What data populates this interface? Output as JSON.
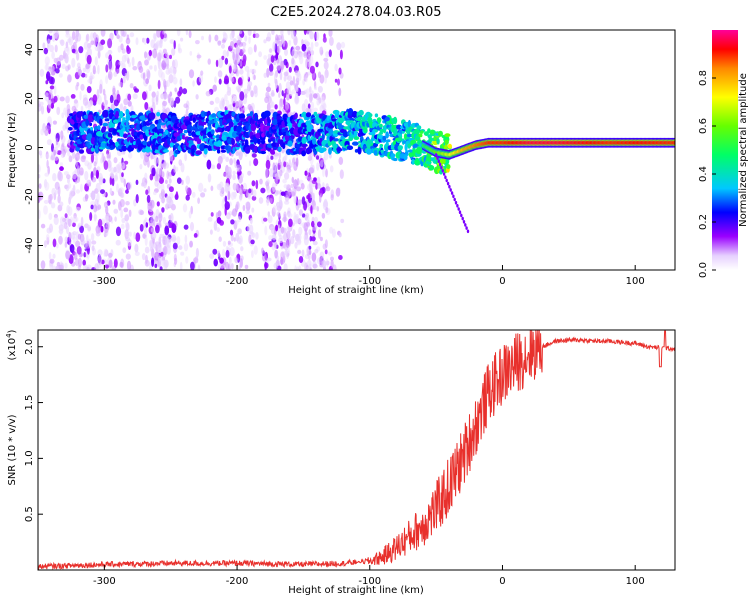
{
  "title": "C2E5.2024.278.04.03.R05",
  "colors": {
    "spectrogram_low": "#8800ee",
    "snr_line": "#e8302c",
    "background": "#ffffff",
    "axis": "#000000"
  },
  "chart_data": [
    {
      "type": "heatmap",
      "xlabel": "Height of straight line (km)",
      "ylabel": "Frequency (Hz)",
      "xlim": [
        -350,
        130
      ],
      "ylim": [
        -50,
        48
      ],
      "x_ticks": [
        -300,
        -200,
        -100,
        0,
        100
      ],
      "y_ticks": [
        -40,
        -20,
        0,
        20,
        40
      ],
      "grid": false,
      "colorbar": {
        "label": "Normalized spectral amplitude",
        "range": [
          0.0,
          1.0
        ],
        "ticks": [
          "0.0",
          "0.2",
          "0.4",
          "0.6",
          "0.8"
        ],
        "tick_values": [
          0.0,
          0.2,
          0.4,
          0.6,
          0.8
        ]
      },
      "ridge": [
        {
          "x": -320,
          "y": 6
        },
        {
          "x": -300,
          "y": 7
        },
        {
          "x": -280,
          "y": 7
        },
        {
          "x": -260,
          "y": 6
        },
        {
          "x": -240,
          "y": 5
        },
        {
          "x": -220,
          "y": 6
        },
        {
          "x": -200,
          "y": 7
        },
        {
          "x": -180,
          "y": 6
        },
        {
          "x": -160,
          "y": 5
        },
        {
          "x": -140,
          "y": 6
        },
        {
          "x": -120,
          "y": 7
        },
        {
          "x": -100,
          "y": 6
        },
        {
          "x": -80,
          "y": 3
        },
        {
          "x": -60,
          "y": 1
        },
        {
          "x": -50,
          "y": -2
        },
        {
          "x": -40,
          "y": -3
        },
        {
          "x": -30,
          "y": -1
        },
        {
          "x": -20,
          "y": 1
        },
        {
          "x": -10,
          "y": 2
        },
        {
          "x": 0,
          "y": 2
        },
        {
          "x": 20,
          "y": 2
        },
        {
          "x": 40,
          "y": 2
        },
        {
          "x": 60,
          "y": 2
        },
        {
          "x": 80,
          "y": 2
        },
        {
          "x": 100,
          "y": 2
        },
        {
          "x": 130,
          "y": 2
        }
      ],
      "ridge_amplitude": [
        0.28,
        0.35,
        0.3,
        0.32,
        0.28,
        0.33,
        0.3,
        0.25,
        0.3,
        0.35,
        0.38,
        0.4,
        0.42,
        0.5,
        0.6,
        0.7,
        0.8,
        0.85,
        0.9,
        0.9,
        0.95,
        0.95,
        0.93,
        0.9,
        0.92,
        0.9
      ]
    },
    {
      "type": "line",
      "xlabel": "Height of straight line (km)",
      "ylabel": "SNR (10 * v/v)",
      "ylabel_multiplier": "(x10",
      "ylabel_multiplier_exp": "4",
      "xlim": [
        -350,
        130
      ],
      "ylim": [
        0,
        2.15
      ],
      "x_ticks": [
        -300,
        -200,
        -100,
        0,
        100
      ],
      "y_ticks": [
        0.5,
        1.0,
        1.5,
        2.0
      ],
      "y_tick_labels": [
        "0.5",
        "1.0",
        "1.5",
        "2.0"
      ],
      "grid": false,
      "series": [
        {
          "x": [
            -350,
            -300,
            -250,
            -200,
            -150,
            -120,
            -100,
            -90,
            -80,
            -70,
            -60,
            -50,
            -40,
            -30,
            -20,
            -10,
            0,
            10,
            20,
            30,
            40,
            50,
            60,
            70,
            80,
            90,
            100,
            110,
            120,
            130
          ],
          "y": [
            0.03,
            0.05,
            0.06,
            0.06,
            0.05,
            0.06,
            0.08,
            0.12,
            0.2,
            0.3,
            0.4,
            0.55,
            0.75,
            1.0,
            1.3,
            1.6,
            1.75,
            1.85,
            1.95,
            2.0,
            2.05,
            2.06,
            2.06,
            2.05,
            2.05,
            2.04,
            2.03,
            2.0,
            1.99,
            1.98
          ]
        }
      ]
    }
  ]
}
